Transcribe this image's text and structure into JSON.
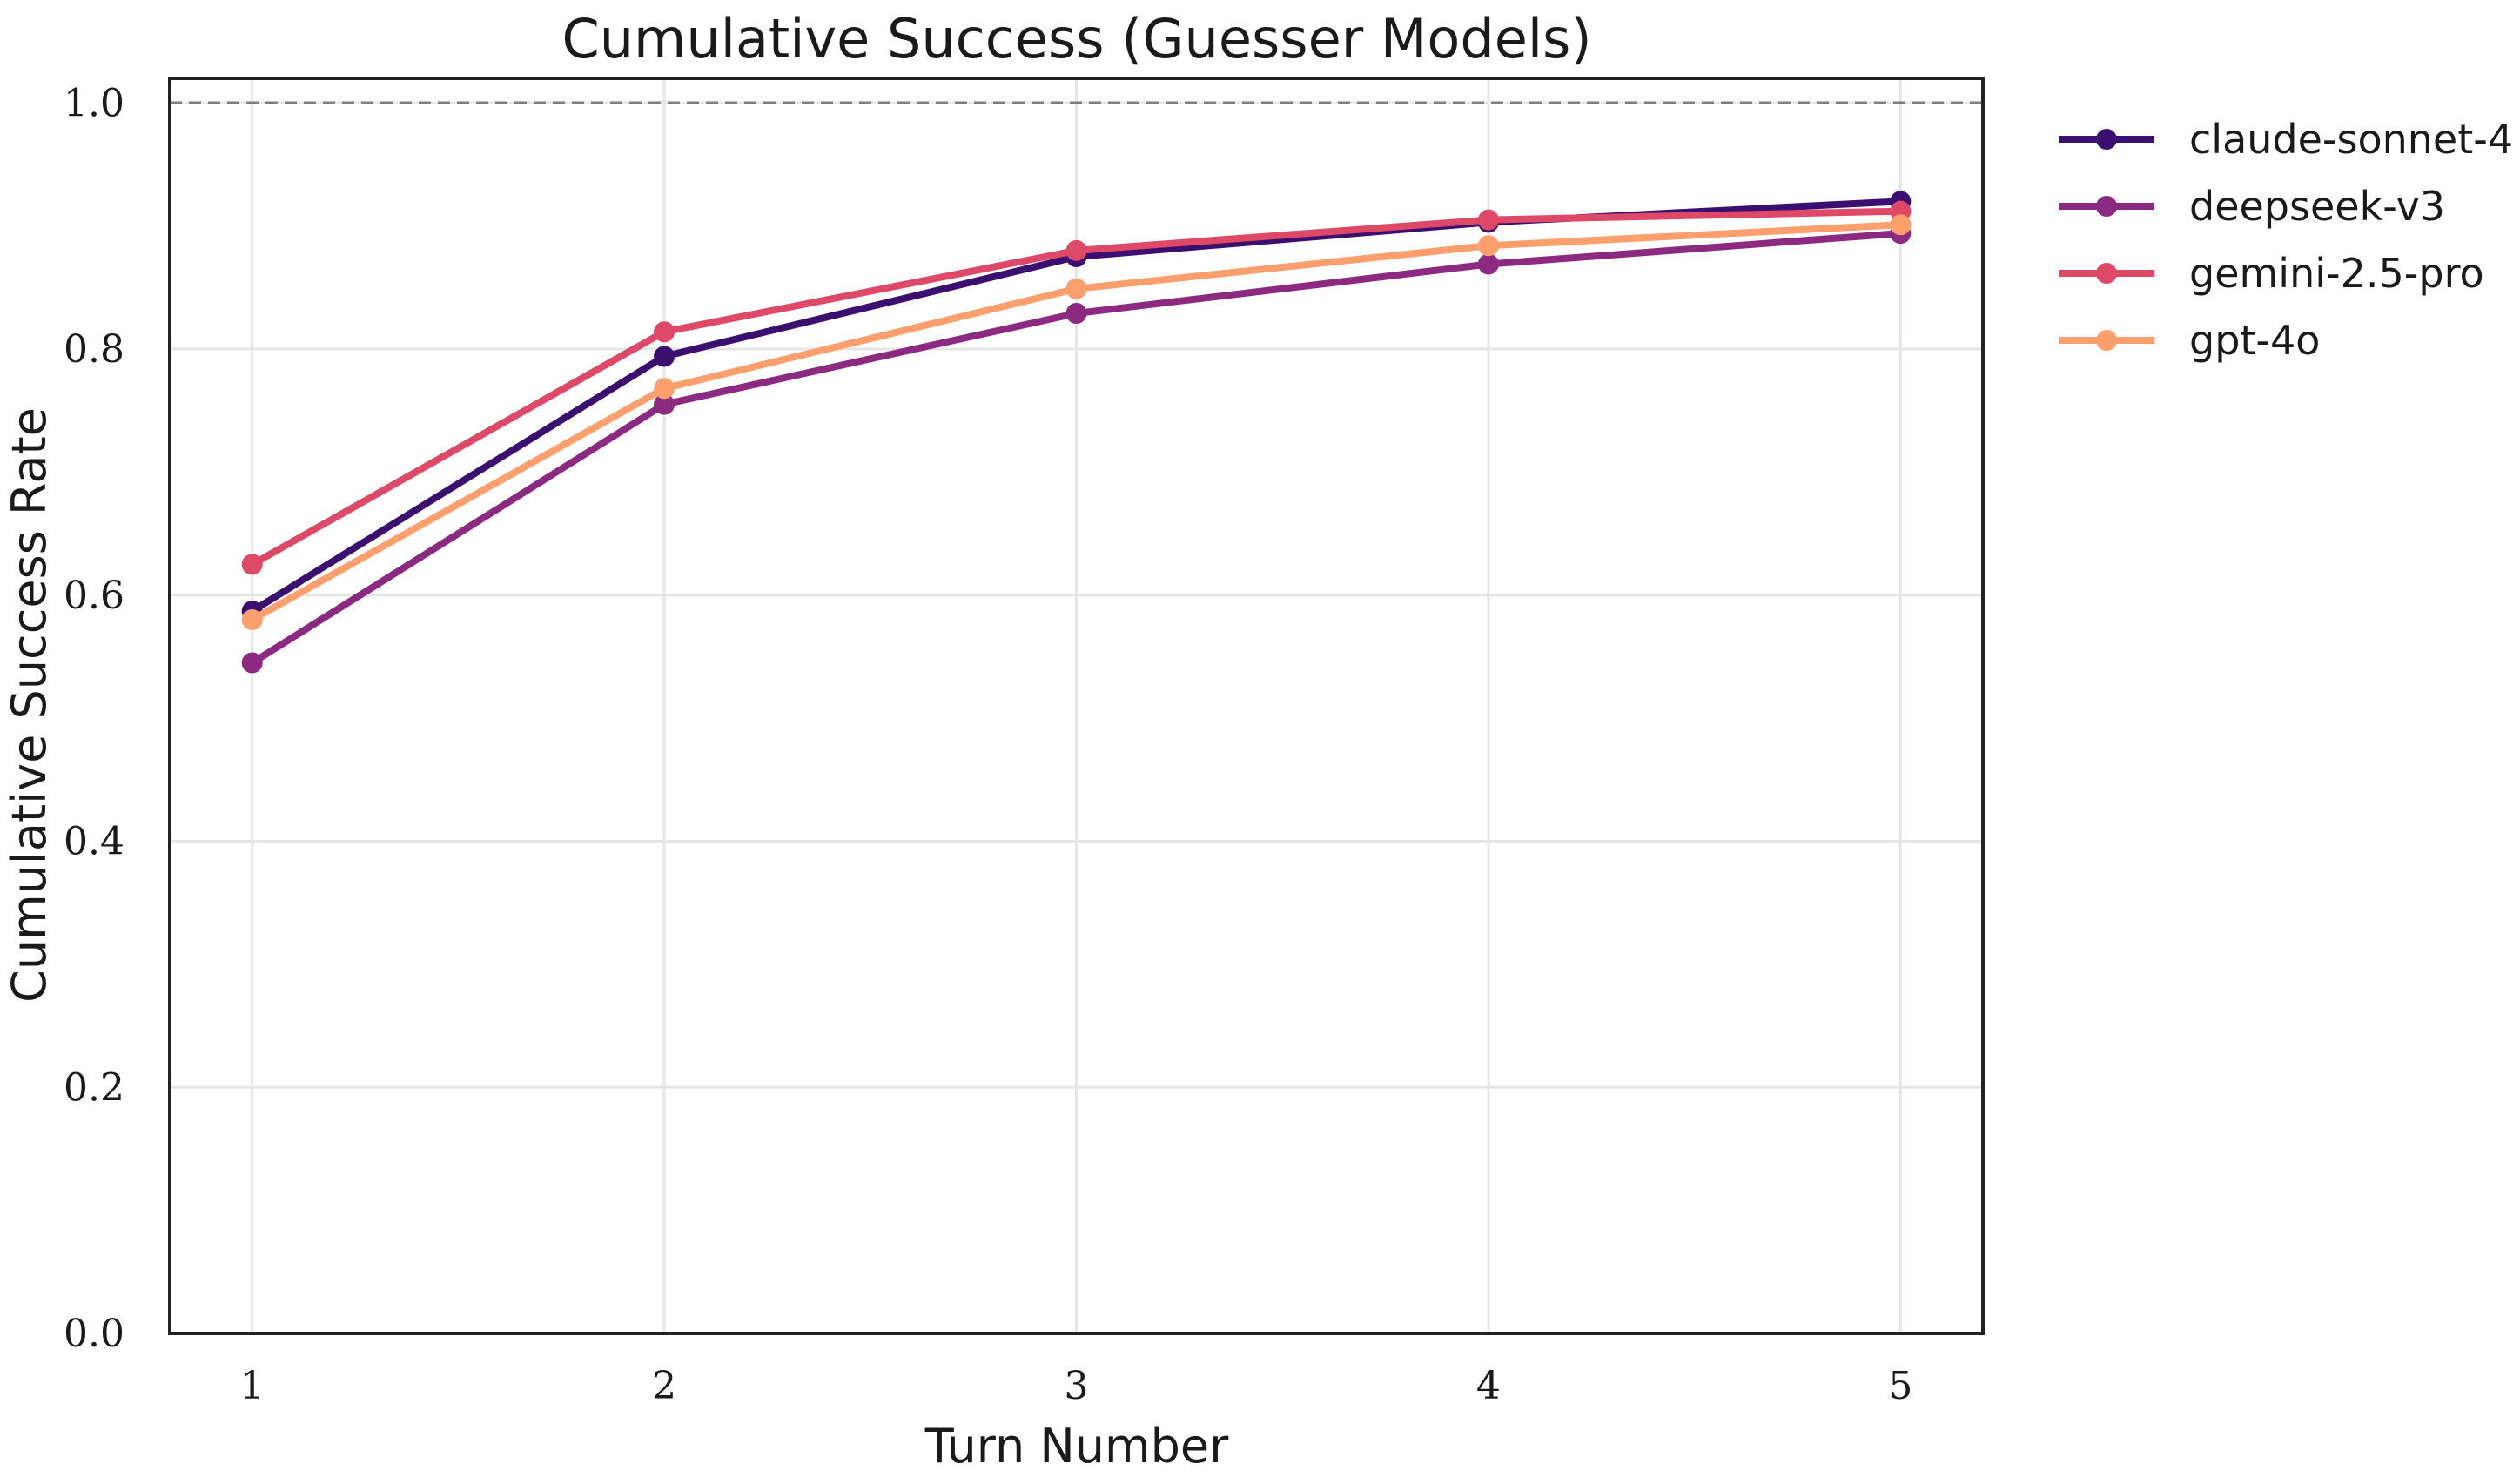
{
  "chart_data": {
    "type": "line",
    "title": "Cumulative Success (Guesser Models)",
    "xlabel": "Turn Number",
    "ylabel": "Cumulative Success Rate",
    "x": [
      1,
      2,
      3,
      4,
      5
    ],
    "x_tick_labels": [
      "1",
      "2",
      "3",
      "4",
      "5"
    ],
    "xlim": [
      0.8,
      5.2
    ],
    "ylim": [
      0.0,
      1.02
    ],
    "y_ticks": [
      0.0,
      0.2,
      0.4,
      0.6,
      0.8,
      1.0
    ],
    "y_tick_labels": [
      "0.0",
      "0.2",
      "0.4",
      "0.6",
      "0.8",
      "1.0"
    ],
    "reference_line": {
      "y": 1.0,
      "style": "dashed",
      "color": "#7f7f7f"
    },
    "grid": true,
    "legend_position": "outside-top-right",
    "series": [
      {
        "name": "claude-sonnet-4",
        "color": "#3b0f70",
        "values": [
          0.587,
          0.794,
          0.875,
          0.903,
          0.92
        ]
      },
      {
        "name": "deepseek-v3",
        "color": "#8c2981",
        "values": [
          0.545,
          0.755,
          0.829,
          0.869,
          0.894
        ]
      },
      {
        "name": "gemini-2.5-pro",
        "color": "#de4968",
        "values": [
          0.625,
          0.814,
          0.88,
          0.905,
          0.912
        ]
      },
      {
        "name": "gpt-4o",
        "color": "#fe9f6d",
        "values": [
          0.58,
          0.768,
          0.849,
          0.884,
          0.901
        ]
      }
    ]
  }
}
